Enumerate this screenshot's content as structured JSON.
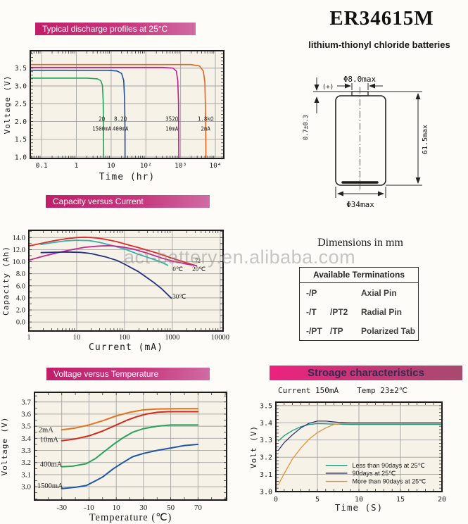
{
  "header": {
    "title": "ER34615M",
    "subtitle": "lithium-thionyl chloride batteries"
  },
  "watermark": "act-battery.en.alibaba.com",
  "dimensions_title": "Dimensions in mm",
  "battery": {
    "dia_top": "Φ8.0max",
    "plus_label": "(+)",
    "button_height": "0.7±0.3",
    "total_height": "61.5max",
    "dia_body": "Φ34max"
  },
  "terminations": {
    "header": "Available Terminations",
    "rows": [
      {
        "code": "-/P",
        "code2": "",
        "name": "Axial Pin"
      },
      {
        "code": "-/T",
        "code2": "/PT2",
        "name": "Radial Pin"
      },
      {
        "code": "-/PT",
        "code2": "/TP",
        "name": "Polarized Tab"
      }
    ]
  },
  "chart_data": [
    {
      "id": "discharge-profiles",
      "type": "line",
      "title": "Typical discharge profiles at 25°C",
      "x_scale": "log",
      "xlabel": "Time (hr)",
      "ylabel": "Voltage (V)",
      "xlim": [
        0.047,
        17500
      ],
      "ylim": [
        0.96,
        3.99
      ],
      "x_ticks": [
        {
          "v": 0.1,
          "t": "0.1"
        },
        {
          "v": 1,
          "t": "1"
        },
        {
          "v": 10,
          "t": "10"
        },
        {
          "v": 100,
          "t": "10²"
        },
        {
          "v": 1000,
          "t": "10³"
        },
        {
          "v": 10000,
          "t": "10⁴"
        }
      ],
      "y_ticks": [
        {
          "v": 1.0,
          "t": "1.0"
        },
        {
          "v": 1.5,
          "t": "1.5"
        },
        {
          "v": 2.0,
          "t": "2.0"
        },
        {
          "v": 2.5,
          "t": "2.5"
        },
        {
          "v": 3.0,
          "t": "3.0"
        },
        {
          "v": 3.5,
          "t": "3.5"
        }
      ],
      "minor": {
        "x": "log",
        "y": 0.1
      },
      "series": [
        {
          "name": "2Ω 1500mA",
          "color": "#1ea45a",
          "points": [
            [
              0.047,
              3.22
            ],
            [
              2,
              3.22
            ],
            [
              4,
              3.2
            ],
            [
              5,
              3.15
            ],
            [
              5.6,
              3.02
            ],
            [
              5.9,
              2.6
            ],
            [
              6.05,
              1.8
            ],
            [
              6.1,
              0.96
            ]
          ]
        },
        {
          "name": "8.2Ω 400mA",
          "color": "#1e4fa1",
          "points": [
            [
              0.047,
              3.44
            ],
            [
              8,
              3.44
            ],
            [
              15,
              3.42
            ],
            [
              20,
              3.35
            ],
            [
              23,
              3.15
            ],
            [
              24.5,
              2.6
            ],
            [
              25,
              1.8
            ],
            [
              25.2,
              0.96
            ]
          ]
        },
        {
          "name": "352Ω 10mA",
          "color": "#bf1d8d",
          "points": [
            [
              0.047,
              3.52
            ],
            [
              300,
              3.52
            ],
            [
              600,
              3.5
            ],
            [
              750,
              3.42
            ],
            [
              830,
              3.15
            ],
            [
              870,
              2.5
            ],
            [
              882,
              1.6
            ],
            [
              886,
              0.96
            ]
          ]
        },
        {
          "name": "1.8kΩ 2mA",
          "color": "#e8641f",
          "points": [
            [
              0.047,
              3.6
            ],
            [
              2000,
              3.6
            ],
            [
              3500,
              3.56
            ],
            [
              4500,
              3.42
            ],
            [
              5000,
              3.1
            ],
            [
              5200,
              2.3
            ],
            [
              5320,
              1.4
            ],
            [
              5350,
              0.96
            ]
          ]
        }
      ],
      "annotations": [
        {
          "x": 5.4,
          "y": 2.02,
          "t": "2Ω"
        },
        {
          "x": 5.4,
          "y": 1.74,
          "t": "1500mA"
        },
        {
          "x": 18.6,
          "y": 2.02,
          "t": "8.2Ω"
        },
        {
          "x": 18.6,
          "y": 1.74,
          "t": "400mA"
        },
        {
          "x": 560,
          "y": 2.02,
          "t": "352Ω"
        },
        {
          "x": 560,
          "y": 1.74,
          "t": "10mA"
        },
        {
          "x": 5250,
          "y": 2.02,
          "t": "1.8kΩ"
        },
        {
          "x": 5250,
          "y": 1.74,
          "t": "2mA"
        }
      ]
    },
    {
      "id": "capacity-vs-current",
      "type": "line",
      "title": "Capacity versus Current",
      "x_scale": "log",
      "xlabel": "Current (mA)",
      "ylabel": "Capacity (Ah)",
      "xlim": [
        1,
        11500
      ],
      "ylim": [
        -1.5,
        15.2
      ],
      "x_ticks": [
        {
          "v": 1,
          "t": "1"
        },
        {
          "v": 10,
          "t": "10"
        },
        {
          "v": 100,
          "t": "100"
        },
        {
          "v": 1000,
          "t": "1000"
        },
        {
          "v": 10000,
          "t": "10000"
        }
      ],
      "y_ticks": [
        {
          "v": 0,
          "t": "0.0"
        },
        {
          "v": 2,
          "t": "2.0"
        },
        {
          "v": 4,
          "t": "4.0"
        },
        {
          "v": 6,
          "t": "6.0"
        },
        {
          "v": 8,
          "t": "8.0"
        },
        {
          "v": 10,
          "t": "10.0"
        },
        {
          "v": 12,
          "t": "12.0"
        },
        {
          "v": 14,
          "t": "14.0"
        }
      ],
      "minor": {
        "x": "log",
        "y": 1.0
      },
      "series": [
        {
          "name": "20℃",
          "color": "#dd2b2b",
          "points": [
            [
              1,
              12.6
            ],
            [
              1.5,
              12.9
            ],
            [
              3,
              13.4
            ],
            [
              6,
              13.8
            ],
            [
              10,
              14.0
            ],
            [
              15,
              14.05
            ],
            [
              25,
              13.95
            ],
            [
              40,
              13.7
            ],
            [
              70,
              13.3
            ],
            [
              100,
              12.95
            ],
            [
              200,
              12.3
            ],
            [
              400,
              11.6
            ],
            [
              700,
              11.0
            ],
            [
              1000,
              10.55
            ],
            [
              2000,
              9.8
            ],
            [
              3200,
              9.3
            ]
          ]
        },
        {
          "name": "0℃",
          "color": "#2fb3ac",
          "points": [
            [
              1.8,
              12.85
            ],
            [
              3,
              13.15
            ],
            [
              6,
              13.45
            ],
            [
              10,
              13.55
            ],
            [
              18,
              13.5
            ],
            [
              30,
              13.2
            ],
            [
              60,
              12.6
            ],
            [
              100,
              12.1
            ],
            [
              200,
              11.2
            ],
            [
              400,
              10.4
            ],
            [
              600,
              9.9
            ],
            [
              800,
              9.4
            ]
          ]
        },
        {
          "name": "",
          "color": "#c3258f",
          "points": [
            [
              1,
              10.25
            ],
            [
              2,
              10.9
            ],
            [
              4,
              11.5
            ],
            [
              8,
              12.0
            ],
            [
              15,
              12.4
            ],
            [
              30,
              12.6
            ],
            [
              50,
              12.65
            ],
            [
              80,
              12.5
            ],
            [
              150,
              12.1
            ],
            [
              300,
              11.4
            ],
            [
              600,
              10.6
            ],
            [
              1000,
              10.1
            ],
            [
              2000,
              9.6
            ],
            [
              3200,
              9.35
            ]
          ]
        },
        {
          "name": "30℃",
          "color": "#22307f",
          "points": [
            [
              1.8,
              11.5
            ],
            [
              3,
              11.55
            ],
            [
              6,
              11.6
            ],
            [
              12,
              11.55
            ],
            [
              20,
              11.35
            ],
            [
              40,
              10.8
            ],
            [
              70,
              10.2
            ],
            [
              100,
              9.6
            ],
            [
              200,
              8.3
            ],
            [
              400,
              6.6
            ],
            [
              600,
              5.5
            ],
            [
              950,
              3.95
            ]
          ]
        }
      ],
      "annotations": [
        {
          "x": 1300,
          "y": 8.45,
          "t": "0℃"
        },
        {
          "x": 3600,
          "y": 8.45,
          "t": "20℃"
        },
        {
          "x": 3400,
          "y": 9.8,
          "t": "72",
          "size": 8
        },
        {
          "x": 1400,
          "y": 3.9,
          "t": "30℃"
        }
      ]
    },
    {
      "id": "voltage-vs-temperature",
      "type": "line",
      "title": "Voltage  versus Temperature",
      "x_scale": "linear",
      "xlabel": "Temperature (℃)",
      "ylabel": "Voltage (V)",
      "xlim": [
        -50,
        91
      ],
      "ylim": [
        2.89,
        3.78
      ],
      "x_ticks": [
        {
          "v": -30,
          "t": "-30"
        },
        {
          "v": -10,
          "t": "-10"
        },
        {
          "v": 10,
          "t": "10"
        },
        {
          "v": 30,
          "t": "30"
        },
        {
          "v": 50,
          "t": "50"
        },
        {
          "v": 70,
          "t": "70"
        }
      ],
      "y_ticks": [
        {
          "v": 3.0,
          "t": "3.0"
        },
        {
          "v": 3.1,
          "t": "3.1"
        },
        {
          "v": 3.2,
          "t": "3.2"
        },
        {
          "v": 3.3,
          "t": "3.3"
        },
        {
          "v": 3.4,
          "t": "3.4"
        },
        {
          "v": 3.5,
          "t": "3.5"
        },
        {
          "v": 3.6,
          "t": "3.6"
        },
        {
          "v": 3.7,
          "t": "3.7"
        }
      ],
      "minor": {
        "x": 10,
        "y": 0.05
      },
      "series": [
        {
          "name": "2mA",
          "color": "#e4731f",
          "points": [
            [
              -30,
              3.47
            ],
            [
              -20,
              3.485
            ],
            [
              -10,
              3.51
            ],
            [
              0,
              3.545
            ],
            [
              10,
              3.585
            ],
            [
              20,
              3.615
            ],
            [
              30,
              3.635
            ],
            [
              40,
              3.642
            ],
            [
              55,
              3.645
            ],
            [
              70,
              3.645
            ]
          ]
        },
        {
          "name": "10mA",
          "color": "#d7281c",
          "points": [
            [
              -30,
              3.38
            ],
            [
              -20,
              3.395
            ],
            [
              -10,
              3.42
            ],
            [
              0,
              3.46
            ],
            [
              10,
              3.51
            ],
            [
              18,
              3.55
            ],
            [
              25,
              3.578
            ],
            [
              32,
              3.6
            ],
            [
              40,
              3.615
            ],
            [
              48,
              3.62
            ],
            [
              70,
              3.62
            ]
          ]
        },
        {
          "name": "400mA",
          "color": "#27a35a",
          "points": [
            [
              -30,
              3.165
            ],
            [
              -22,
              3.17
            ],
            [
              -12,
              3.19
            ],
            [
              -5,
              3.235
            ],
            [
              0,
              3.28
            ],
            [
              8,
              3.35
            ],
            [
              15,
              3.405
            ],
            [
              22,
              3.45
            ],
            [
              30,
              3.48
            ],
            [
              40,
              3.5
            ],
            [
              50,
              3.51
            ],
            [
              70,
              3.51
            ]
          ]
        },
        {
          "name": "1500mA",
          "color": "#1c56a8",
          "points": [
            [
              -30,
              2.985
            ],
            [
              -20,
              2.995
            ],
            [
              -12,
              3.01
            ],
            [
              -5,
              3.05
            ],
            [
              0,
              3.08
            ],
            [
              8,
              3.15
            ],
            [
              15,
              3.2
            ],
            [
              22,
              3.248
            ],
            [
              30,
              3.275
            ],
            [
              40,
              3.3
            ],
            [
              50,
              3.32
            ],
            [
              60,
              3.34
            ],
            [
              70,
              3.35
            ]
          ]
        }
      ],
      "annotations": [
        {
          "x": -47,
          "y": 3.45,
          "t": "2mA",
          "anchor": "start"
        },
        {
          "x": -46,
          "y": 3.37,
          "t": "10mA",
          "anchor": "start"
        },
        {
          "x": -46,
          "y": 3.165,
          "t": "400mA",
          "anchor": "start"
        },
        {
          "x": -48,
          "y": 2.99,
          "t": "1500mA",
          "anchor": "start"
        }
      ]
    },
    {
      "id": "storage-characteristics",
      "type": "line",
      "title": "Stroage characteristics",
      "subtitle_left": "Current 150mA",
      "subtitle_right": "Temp 23±2℃",
      "x_scale": "linear",
      "xlabel": "Time (S)",
      "ylabel": "Volt (V)",
      "xlim": [
        0,
        20
      ],
      "ylim": [
        3.0,
        3.52
      ],
      "x_ticks": [
        {
          "v": 0,
          "t": "0"
        },
        {
          "v": 5,
          "t": "5"
        },
        {
          "v": 10,
          "t": "10"
        },
        {
          "v": 15,
          "t": "15"
        },
        {
          "v": 20,
          "t": "20"
        }
      ],
      "y_ticks": [
        {
          "v": 3.0,
          "t": "3.0"
        },
        {
          "v": 3.1,
          "t": "3.1"
        },
        {
          "v": 3.2,
          "t": "3.2"
        },
        {
          "v": 3.3,
          "t": "3.3"
        },
        {
          "v": 3.4,
          "t": "3.4"
        },
        {
          "v": 3.5,
          "t": "3.5"
        }
      ],
      "minor": {
        "x": 1,
        "y": 0.02
      },
      "series": [
        {
          "name": "Less than  90days at 25℃",
          "color": "#159e82",
          "points": [
            [
              0.3,
              3.295
            ],
            [
              1,
              3.325
            ],
            [
              2,
              3.355
            ],
            [
              3,
              3.377
            ],
            [
              4,
              3.39
            ],
            [
              5,
              3.395
            ],
            [
              6.5,
              3.393
            ],
            [
              9,
              3.39
            ],
            [
              20,
              3.39
            ]
          ]
        },
        {
          "name": "90days at 25℃",
          "color": "#31386e",
          "points": [
            [
              0.3,
              3.24
            ],
            [
              1,
              3.285
            ],
            [
              2,
              3.33
            ],
            [
              3,
              3.37
            ],
            [
              4,
              3.397
            ],
            [
              5,
              3.41
            ],
            [
              6,
              3.41
            ],
            [
              7.5,
              3.403
            ],
            [
              9,
              3.4
            ],
            [
              20,
              3.4
            ]
          ]
        },
        {
          "name": "More than 90days at 25℃",
          "color": "#e2943c",
          "points": [
            [
              0.3,
              3.04
            ],
            [
              1,
              3.105
            ],
            [
              2,
              3.19
            ],
            [
              3,
              3.253
            ],
            [
              4,
              3.305
            ],
            [
              5,
              3.343
            ],
            [
              6,
              3.37
            ],
            [
              7,
              3.39
            ],
            [
              8,
              3.396
            ],
            [
              20,
              3.396
            ]
          ]
        }
      ],
      "legend": {
        "x1": 6.0,
        "x2": 8.6,
        "tx": 9.2,
        "ys": [
          3.152,
          3.107,
          3.059
        ]
      },
      "annotations": []
    }
  ]
}
